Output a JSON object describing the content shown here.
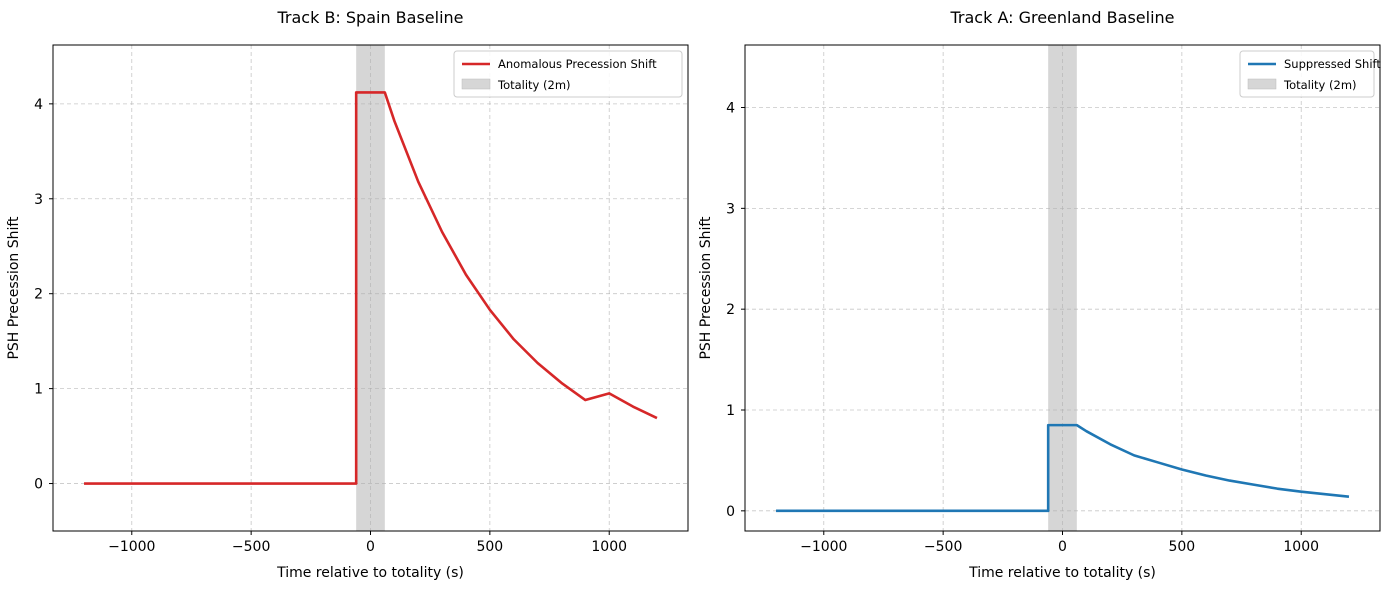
{
  "chart_data": [
    {
      "type": "line",
      "title": "Track B: Spain Baseline",
      "xlabel": "Time relative to totality (s)",
      "ylabel": "PSH Precession Shift",
      "xlim": [
        -1330,
        1330
      ],
      "ylim": [
        -0.5,
        4.62
      ],
      "xticks": [
        -1000,
        -500,
        0,
        500,
        1000
      ],
      "xtick_labels": [
        "−1000",
        "−500",
        "0",
        "500",
        "1000"
      ],
      "yticks": [
        0,
        1,
        2,
        3,
        4
      ],
      "ytick_labels": [
        "0",
        "1",
        "2",
        "3",
        "4"
      ],
      "grid": true,
      "legend_position": "top-right",
      "totality": {
        "name": "Totality (2m)",
        "start": -60,
        "end": 60,
        "color": "#d6d6d6"
      },
      "series": [
        {
          "name": "Anomalous Precession Shift",
          "color": "#d62728",
          "x": [
            -1200,
            -60,
            -60,
            60,
            100,
            200,
            300,
            400,
            500,
            600,
            700,
            800,
            900,
            1000,
            1100,
            1200
          ],
          "y": [
            0,
            0,
            4.12,
            4.12,
            3.82,
            3.18,
            2.65,
            2.2,
            1.83,
            1.52,
            1.27,
            1.06,
            0.88,
            0.95,
            0.81,
            0.69
          ]
        }
      ]
    },
    {
      "type": "line",
      "title": "Track A: Greenland Baseline",
      "xlabel": "Time relative to totality (s)",
      "ylabel": "PSH Precession Shift",
      "xlim": [
        -1330,
        1330
      ],
      "ylim": [
        -0.2,
        4.62
      ],
      "xticks": [
        -1000,
        -500,
        0,
        500,
        1000
      ],
      "xtick_labels": [
        "−1000",
        "−500",
        "0",
        "500",
        "1000"
      ],
      "yticks": [
        0,
        1,
        2,
        3,
        4
      ],
      "ytick_labels": [
        "0",
        "1",
        "2",
        "3",
        "4"
      ],
      "grid": true,
      "legend_position": "top-right",
      "totality": {
        "name": "Totality (2m)",
        "start": -60,
        "end": 60,
        "color": "#d6d6d6"
      },
      "series": [
        {
          "name": "Suppressed Shift",
          "color": "#1f77b4",
          "x": [
            -1200,
            -60,
            -60,
            60,
            100,
            200,
            300,
            400,
            500,
            600,
            700,
            800,
            900,
            1000,
            1100,
            1200
          ],
          "y": [
            0,
            0,
            0.85,
            0.85,
            0.79,
            0.66,
            0.55,
            0.48,
            0.41,
            0.35,
            0.3,
            0.26,
            0.22,
            0.19,
            0.165,
            0.14
          ]
        }
      ]
    }
  ]
}
